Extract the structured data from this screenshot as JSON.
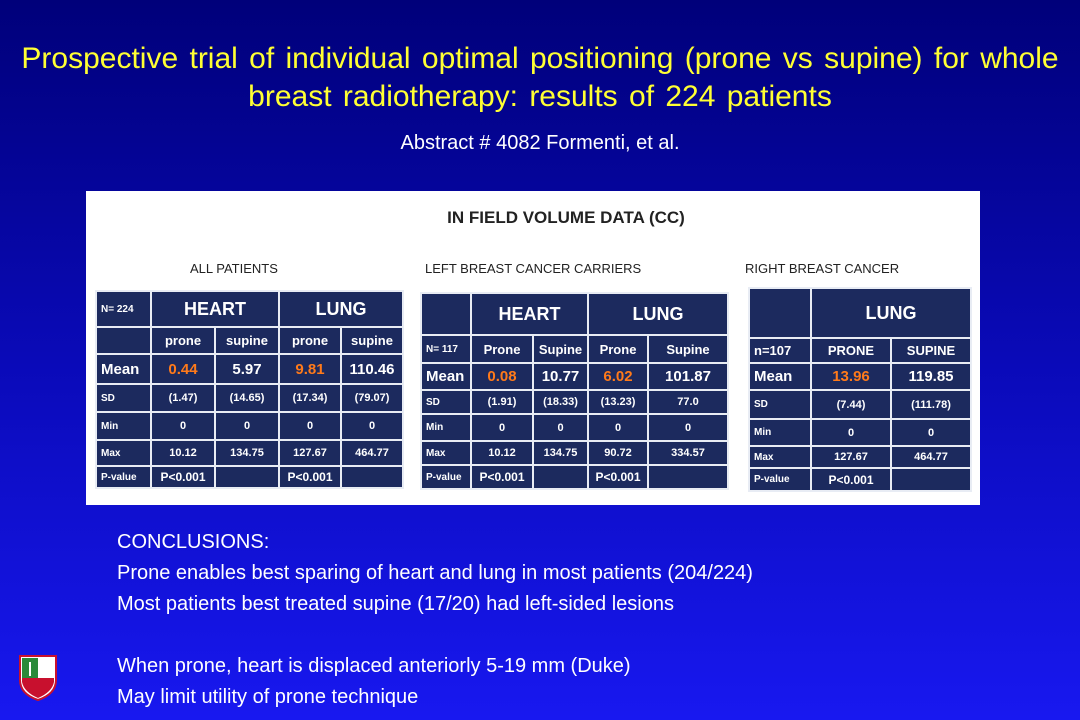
{
  "header": {
    "title": "Prospective trial of individual optimal positioning (prone vs supine) for whole breast radiotherapy: results of 224 patients",
    "subtitle": "Abstract # 4082 Formenti, et al."
  },
  "figure": {
    "heading": "IN FIELD VOLUME DATA (CC)",
    "tables": [
      {
        "label": "ALL PATIENTS",
        "n_label": "N= 224",
        "groups": [
          "HEART",
          "LUNG"
        ],
        "columns": [
          "prone",
          "supine",
          "prone",
          "supine"
        ],
        "rows": [
          {
            "label": "Mean",
            "cells": [
              "0.44",
              "5.97",
              "9.81",
              "110.46"
            ]
          },
          {
            "label": "SD",
            "cells": [
              "(1.47)",
              "(14.65)",
              "(17.34)",
              "(79.07)"
            ]
          },
          {
            "label": "Min",
            "cells": [
              "0",
              "0",
              "0",
              "0"
            ]
          },
          {
            "label": "Max",
            "cells": [
              "10.12",
              "134.75",
              "127.67",
              "464.77"
            ]
          },
          {
            "label": "P-value",
            "cells": [
              "P<0.001",
              null,
              "P<0.001",
              null
            ]
          }
        ]
      },
      {
        "label": "LEFT BREAST CANCER CARRIERS",
        "n_label": "N= 117",
        "groups": [
          "HEART",
          "LUNG"
        ],
        "columns": [
          "Prone",
          "Supine",
          "Prone",
          "Supine"
        ],
        "rows": [
          {
            "label": "Mean",
            "cells": [
              "0.08",
              "10.77",
              "6.02",
              "101.87"
            ]
          },
          {
            "label": "SD",
            "cells": [
              "(1.91)",
              "(18.33)",
              "(13.23)",
              "77.0"
            ]
          },
          {
            "label": "Min",
            "cells": [
              "0",
              "0",
              "0",
              "0"
            ]
          },
          {
            "label": "Max",
            "cells": [
              "10.12",
              "134.75",
              "90.72",
              "334.57"
            ]
          },
          {
            "label": "P-value",
            "cells": [
              "P<0.001",
              null,
              "P<0.001",
              null
            ]
          }
        ]
      },
      {
        "label": "RIGHT BREAST CANCER",
        "n_label": "n=107",
        "groups": [
          "LUNG"
        ],
        "columns": [
          "PRONE",
          "SUPINE"
        ],
        "rows": [
          {
            "label": "Mean",
            "cells": [
              "13.96",
              "119.85"
            ]
          },
          {
            "label": "SD",
            "cells": [
              "(7.44)",
              "(111.78)"
            ]
          },
          {
            "label": "Min",
            "cells": [
              "0",
              "0"
            ]
          },
          {
            "label": "Max",
            "cells": [
              "127.67",
              "464.77"
            ]
          },
          {
            "label": "P-value",
            "cells": [
              "P<0.001",
              null
            ]
          }
        ]
      }
    ]
  },
  "conclusions": {
    "heading": "CONCLUSIONS:",
    "lines": [
      "Prone enables best sparing of heart and lung in most patients (204/224)",
      "Most patients best treated supine (17/20) had left-sided lesions",
      "When prone, heart is displaced anteriorly 5-19 mm (Duke)",
      "May limit utility of prone technique"
    ]
  }
}
